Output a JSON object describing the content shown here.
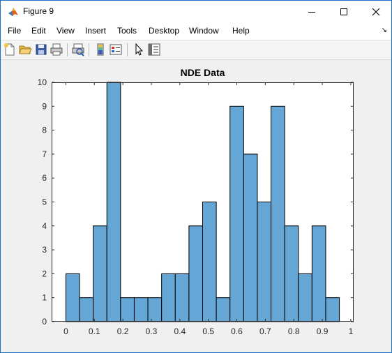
{
  "window": {
    "title": "Figure 9",
    "controls": {
      "minimize": "minimize",
      "maximize": "maximize",
      "close": "close"
    }
  },
  "menu": {
    "items": [
      "File",
      "Edit",
      "View",
      "Insert",
      "Tools",
      "Desktop",
      "Window",
      "Help"
    ],
    "overflow_glyph": "↘"
  },
  "toolbar": {
    "buttons": [
      {
        "icon": "new-figure-icon"
      },
      {
        "icon": "open-folder-icon"
      },
      {
        "icon": "save-icon"
      },
      {
        "icon": "print-icon"
      },
      {
        "icon": "print-preview-icon"
      },
      {
        "icon": "colorbar-icon"
      },
      {
        "icon": "legend-icon"
      },
      {
        "icon": "edit-plot-pointer-icon"
      },
      {
        "icon": "property-inspector-icon"
      }
    ]
  },
  "chart_data": {
    "type": "bar",
    "title": "NDE Data",
    "xlabel": "",
    "ylabel": "",
    "bar_color": "#64a6d5",
    "edge_color": "#000000",
    "bin_edges": [
      0,
      0.048,
      0.096,
      0.144,
      0.192,
      0.24,
      0.288,
      0.336,
      0.384,
      0.432,
      0.48,
      0.528,
      0.576,
      0.624,
      0.672,
      0.72,
      0.768,
      0.816,
      0.864,
      0.912,
      0.96
    ],
    "values": [
      2,
      1,
      4,
      10,
      1,
      1,
      1,
      2,
      2,
      4,
      5,
      1,
      9,
      7,
      5,
      9,
      4,
      2,
      4,
      1
    ],
    "xlim": [
      -0.05,
      1.01
    ],
    "ylim": [
      0,
      10
    ],
    "xticks": [
      "0",
      "0.1",
      "0.2",
      "0.3",
      "0.4",
      "0.5",
      "0.6",
      "0.7",
      "0.8",
      "0.9",
      "1"
    ],
    "yticks": [
      "0",
      "1",
      "2",
      "3",
      "4",
      "5",
      "6",
      "7",
      "8",
      "9",
      "10"
    ]
  }
}
